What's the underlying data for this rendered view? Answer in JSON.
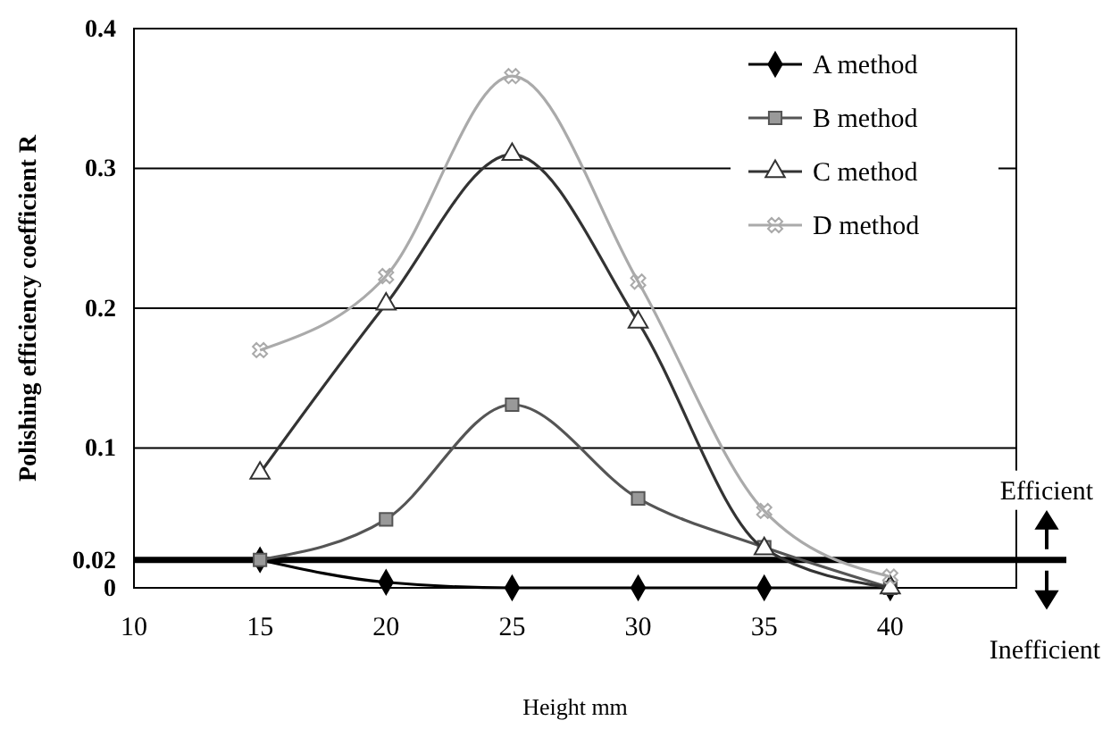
{
  "chart_data": {
    "type": "line",
    "xlabel": "Height mm",
    "ylabel": "Polishing efficiency coefficient R",
    "xlim": [
      10,
      45
    ],
    "xticks": [
      10,
      15,
      20,
      25,
      30,
      35,
      40
    ],
    "ylim": [
      0,
      0.4
    ],
    "yticks": [
      0,
      0.02,
      0.1,
      0.2,
      0.3,
      0.4
    ],
    "grid": "y",
    "legend": "top right",
    "series": [
      {
        "name": "A method",
        "color": "#000000",
        "marker": "diamond",
        "x": [
          15,
          20,
          25,
          30,
          35,
          40
        ],
        "values": [
          0.02,
          0.004,
          0,
          0,
          0,
          0
        ]
      },
      {
        "name": "B method",
        "color": "#555555",
        "marker": "square",
        "x": [
          15,
          20,
          25,
          30,
          35,
          40
        ],
        "values": [
          0.02,
          0.049,
          0.131,
          0.064,
          0.029,
          0
        ]
      },
      {
        "name": "C method",
        "color": "#333333",
        "marker": "triangle",
        "x": [
          15,
          20,
          25,
          30,
          35,
          40
        ],
        "values": [
          0.082,
          0.203,
          0.31,
          0.19,
          0.028,
          0
        ]
      },
      {
        "name": "D method",
        "color": "#aaaaaa",
        "marker": "cross",
        "x": [
          15,
          20,
          25,
          30,
          35,
          40
        ],
        "values": [
          0.17,
          0.223,
          0.366,
          0.219,
          0.055,
          0.008
        ]
      }
    ],
    "ref_lines": [
      {
        "axis": "y",
        "value": 0.02,
        "color": "#000000",
        "line_style": "solid"
      }
    ],
    "annotations": [
      "Efficient",
      "Inefficient"
    ]
  }
}
